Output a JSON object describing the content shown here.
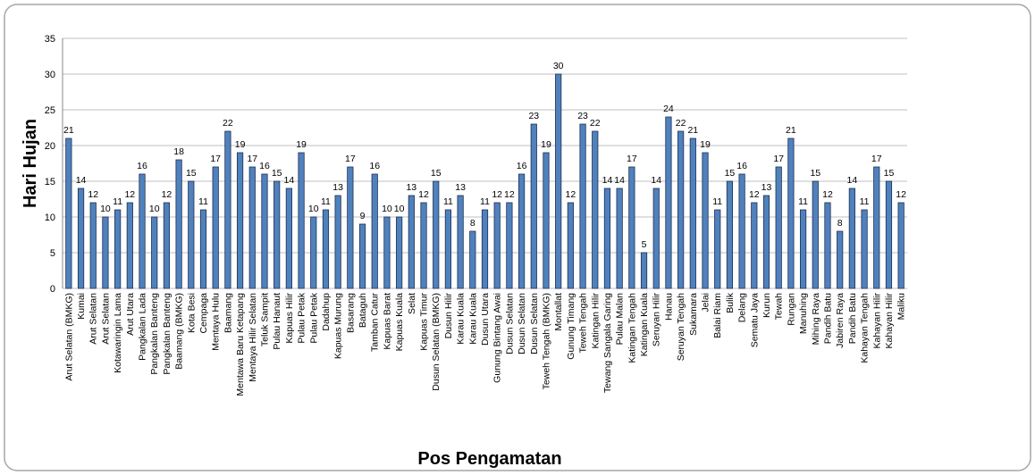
{
  "chart_data": {
    "type": "bar",
    "y_label": "Hari Hujan",
    "x_label": "Pos Pengamatan",
    "categories": [
      "Arut Selatan (BMKG)",
      "Kumai",
      "Arut Selatan",
      "Arut Selatan",
      "Kotawaringin Lama",
      "Arut Utara",
      "Pangkalan Lada",
      "Pangkalan Banteng",
      "Pangkalan Banteng",
      "Baamang (BMKG)",
      "Kota Besi",
      "Cempaga",
      "Mentaya Hulu",
      "Baamang",
      "Mentawa Baru Ketapang",
      "Mentaya Hilir Selatan",
      "Teluk Sampit",
      "Pulau Hanaut",
      "Kapuas Hilir",
      "Pulau Petak",
      "Pulau Petak",
      "Dadahup",
      "Kapuas Murung",
      "Basarang",
      "Bataguh",
      "Tamban Catur",
      "Kapuas Barat",
      "Kapuas Kuala",
      "Selat",
      "Kapuas Timur",
      "Dusun Selatan (BMKG)",
      "Dusun Hilir",
      "Karau Kuala",
      "Karau Kuala",
      "Dusun Utara",
      "Gunung Bintang Awai",
      "Dusun Selatan",
      "Dusun Selatan",
      "Dusun Selatan",
      "Teweh Tengah (BMKG)",
      "Montallat",
      "Gunung Timang",
      "Teweh Tengah",
      "Katingan Hilir",
      "Tewang Sangala Garing",
      "Pulau Malan",
      "Katingan Tengah",
      "Katingan Kuala",
      "Seruyan Hilir",
      "Hanau",
      "Seruyan Tengah",
      "Sukamara",
      "Jelai",
      "Balai Riam",
      "Bulik",
      "Delang",
      "Sematu Jaya",
      "Kurun",
      "Tewah",
      "Rungan",
      "Manuhing",
      "Mihing Raya",
      "Pandih Batu",
      "Jabiren Raya",
      "Pandih Batu",
      "Kahayan Tengah",
      "Kahayan Hilir",
      "Kahayan Hilir",
      "Maliku"
    ],
    "values": [
      21,
      14,
      12,
      10,
      11,
      12,
      16,
      10,
      12,
      18,
      15,
      11,
      17,
      22,
      19,
      17,
      16,
      15,
      14,
      19,
      10,
      11,
      13,
      17,
      9,
      16,
      10,
      10,
      13,
      12,
      15,
      11,
      13,
      8,
      11,
      12,
      12,
      16,
      23,
      19,
      30,
      12,
      23,
      22,
      14,
      14,
      17,
      5,
      14,
      24,
      22,
      21,
      19,
      11,
      15,
      16,
      12,
      13,
      17,
      21,
      11,
      15,
      12,
      8,
      14,
      11,
      17,
      15,
      12
    ],
    "color": "#4f81bd",
    "ylim": [
      0,
      35
    ],
    "yticks": [
      0,
      5,
      10,
      15,
      20,
      25,
      30,
      35
    ],
    "grid": true
  }
}
